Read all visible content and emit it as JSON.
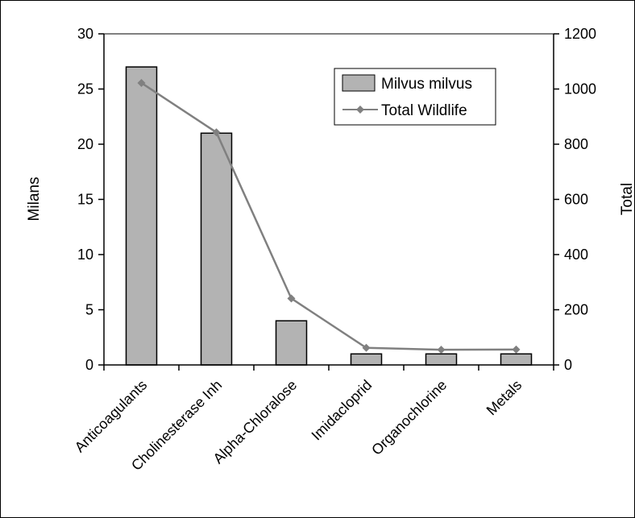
{
  "chart_data": {
    "type": "bar",
    "title": "",
    "categories": [
      "Anticoagulants",
      "Cholinesterase Inh",
      "Alpha-Chloralose",
      "Imidacloprid",
      "Organochlorine",
      "Metals"
    ],
    "series": [
      {
        "name": "Milvus milvus",
        "type": "bar",
        "axis": "left",
        "values": [
          27,
          21,
          4,
          1,
          1,
          1
        ],
        "color": "#b3b3b3"
      },
      {
        "name": "Total Wildlife",
        "type": "line",
        "axis": "right",
        "values": [
          1022,
          843,
          241,
          62,
          55,
          56
        ],
        "color": "#808080"
      }
    ],
    "ylabel_left": "Milans",
    "ylabel_right": "Total",
    "ylim_left": [
      0,
      30
    ],
    "ylim_right": [
      0,
      1200
    ],
    "yticks_left": [
      "0",
      "5",
      "10",
      "15",
      "20",
      "25",
      "30"
    ],
    "yticks_right": [
      "0",
      "200",
      "400",
      "600",
      "800",
      "1000",
      "1200"
    ],
    "grid": false,
    "legend": "top-right"
  }
}
